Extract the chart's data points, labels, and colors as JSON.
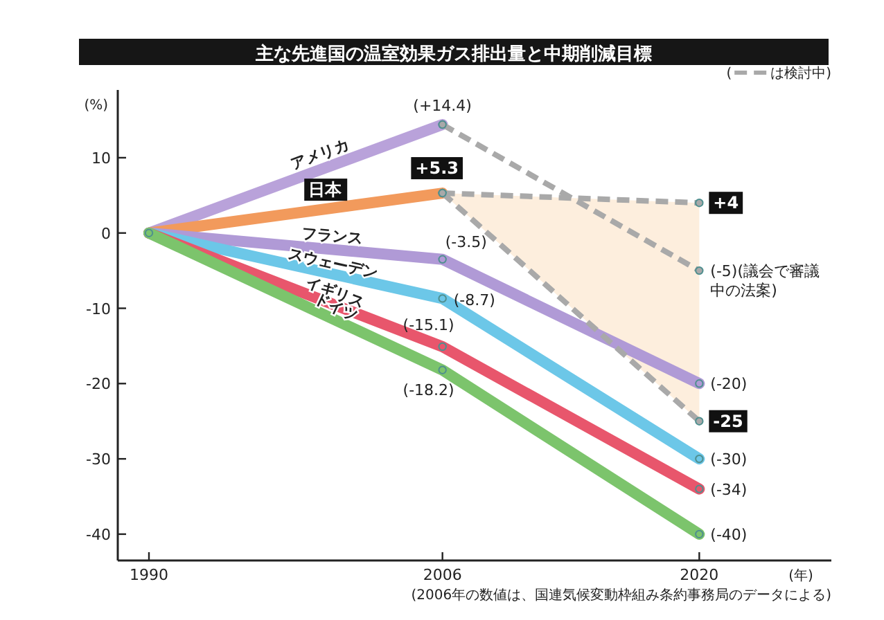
{
  "chart_data": {
    "type": "line",
    "title": "主な先進国の温室効果ガス排出量と中期削減目標",
    "ylabel": "(%)",
    "xlabel": "(年)",
    "x": [
      1990,
      2006,
      2020
    ],
    "xlim": [
      1988.3,
      2027.2
    ],
    "ylim": [
      -43.5,
      19
    ],
    "xticks": [
      1990,
      2006,
      2020
    ],
    "yticks": [
      10,
      0,
      -10,
      -20,
      -30,
      -40
    ],
    "grid": false,
    "legend": "top right",
    "legend_title": "(",
    "marker": "circle",
    "annotations": [
      "(2006年の数値は、国連気候変動枠組み条約事務局のデータによる)"
    ],
    "series": [
      {
        "name": "アメリカ",
        "color": "#b9a2da",
        "values": [
          0,
          14.4,
          null
        ],
        "value_labels": [
          null,
          "(+14.4)",
          null
        ]
      },
      {
        "name": "日本",
        "color": "#f29a5c",
        "values": [
          0,
          5.3,
          null
        ],
        "value_labels": [
          null,
          "+5.3",
          null
        ]
      },
      {
        "name": "フランス",
        "color": "#b09ad6",
        "values": [
          0,
          -3.5,
          -20
        ],
        "value_labels": [
          null,
          "(-3.5)",
          "(-20)"
        ]
      },
      {
        "name": "スウェーデン",
        "color": "#6cc7e8",
        "values": [
          0,
          -8.7,
          -30
        ],
        "value_labels": [
          null,
          "(-8.7)",
          "(-30)"
        ]
      },
      {
        "name": "イギリス",
        "color": "#e8566c",
        "values": [
          0,
          -15.1,
          -34
        ],
        "value_labels": [
          null,
          "(-15.1)",
          "(-34)"
        ]
      },
      {
        "name": "ドイツ",
        "color": "#7cc46c",
        "values": [
          0,
          -18.2,
          -40
        ],
        "value_labels": [
          null,
          "(-18.2)",
          "(-40)"
        ]
      },
      {
        "name": "は検討中)",
        "type": "line",
        "line_style": "dashed",
        "color": "#a9a9a9",
        "values": [
          null,
          14.4,
          -5
        ],
        "value_labels": [
          null,
          null,
          "(-5)(議会で審議中の法案)"
        ]
      },
      {
        "type": "line",
        "line_style": "dashed",
        "color": "#a9a9a9",
        "values": [
          null,
          5.3,
          4
        ],
        "value_labels": [
          null,
          null,
          "+4"
        ]
      },
      {
        "type": "line",
        "line_style": "dashed",
        "color": "#a9a9a9",
        "values": [
          null,
          5.3,
          -25
        ],
        "value_labels": [
          null,
          null,
          "-25"
        ]
      }
    ]
  }
}
